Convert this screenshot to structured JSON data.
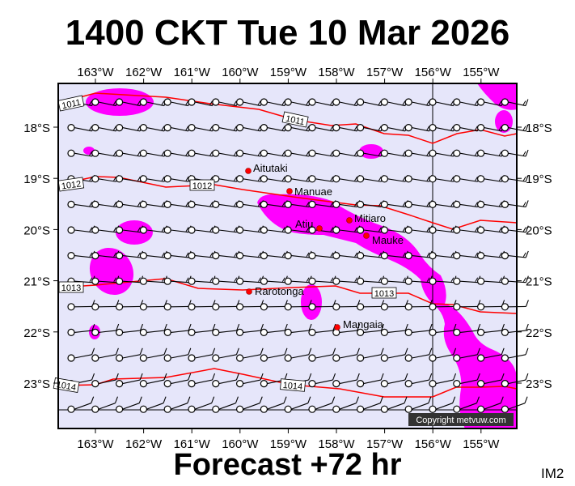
{
  "title": "1400 CKT Tue 10 Mar 2026",
  "footer": "Forecast +72 hr",
  "image_code": "IM2",
  "copyright": "Copyright metvuw.com",
  "colors": {
    "background": "#e6e6fa",
    "precip": "#ff00ff",
    "isobar": "#ff0000",
    "island": "#ff0000"
  },
  "lon_labels": [
    "163°W",
    "162°W",
    "161°W",
    "160°W",
    "159°W",
    "158°W",
    "157°W",
    "156°W",
    "155°W"
  ],
  "lat_labels": [
    "18°S",
    "19°S",
    "20°S",
    "21°S",
    "22°S",
    "23°S"
  ],
  "isobar_labels": [
    "1011",
    "1011",
    "1012",
    "1012",
    "1013",
    "1013",
    "1014",
    "1014"
  ],
  "islands": [
    {
      "name": "Aitutaki"
    },
    {
      "name": "Manuae"
    },
    {
      "name": "Atiu"
    },
    {
      "name": "Mitiaro"
    },
    {
      "name": "Mauke"
    },
    {
      "name": "Rarotonga"
    },
    {
      "name": "Mangaia"
    }
  ]
}
